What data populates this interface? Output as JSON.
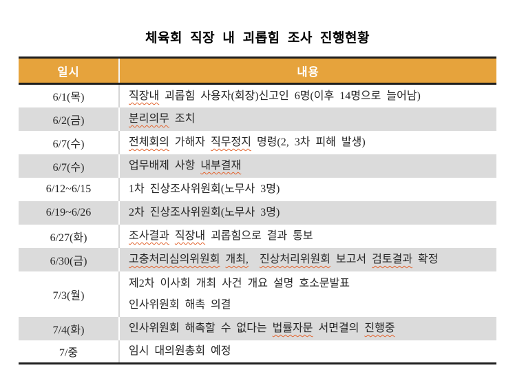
{
  "page": {
    "title": "체육회 직장 내 괴롭힘 조사 진행현황"
  },
  "colors": {
    "header_bg": "#E6A33C",
    "header_text": "#FFFFFF",
    "row_alt_bg": "#DBDBDB",
    "table_border": "#1E1E1E",
    "spellcheck_underline": "#E2622C",
    "body_text": "#262626"
  },
  "table": {
    "columns": [
      {
        "label": "일시"
      },
      {
        "label": "내용"
      }
    ],
    "rows": [
      {
        "date": "6/1(목)",
        "shaded": false,
        "lines": [
          [
            {
              "t": "직장내",
              "m": true
            },
            {
              "t": " 괴롭힘 사용자(회장)신고인 6명(이후 14명으로 늘어남)",
              "m": false
            }
          ]
        ]
      },
      {
        "date": "6/2(금)",
        "shaded": true,
        "lines": [
          [
            {
              "t": "분리의무",
              "m": true
            },
            {
              "t": " 조치",
              "m": false
            }
          ]
        ]
      },
      {
        "date": "6/7(수)",
        "shaded": false,
        "lines": [
          [
            {
              "t": "전체회의",
              "m": true
            },
            {
              "t": " 가해자 ",
              "m": false
            },
            {
              "t": "직무정지",
              "m": true
            },
            {
              "t": " 명령(2, 3차 피해 발생)",
              "m": false
            }
          ]
        ]
      },
      {
        "date": "6/7(수)",
        "shaded": true,
        "lines": [
          [
            {
              "t": "업무배제 사항 ",
              "m": false
            },
            {
              "t": "내부결재",
              "m": true
            }
          ]
        ]
      },
      {
        "date": "6/12~6/15",
        "shaded": false,
        "lines": [
          [
            {
              "t": "1차 진상조사위원회(노무사 3명)",
              "m": false
            }
          ]
        ]
      },
      {
        "date": "6/19~6/26",
        "shaded": true,
        "lines": [
          [
            {
              "t": "2차 진상조사위원회(노무사 3명)",
              "m": false
            }
          ]
        ]
      },
      {
        "date": "6/27(화)",
        "shaded": false,
        "lines": [
          [
            {
              "t": "조사결과",
              "m": true
            },
            {
              "t": " ",
              "m": false
            },
            {
              "t": "직장내",
              "m": true
            },
            {
              "t": " 괴롭힘으로 결과 통보",
              "m": false
            }
          ]
        ]
      },
      {
        "date": "6/30(금)",
        "shaded": true,
        "lines": [
          [
            {
              "t": "고충처리심의위원회",
              "m": true
            },
            {
              "t": " ",
              "m": false
            },
            {
              "t": "개최,",
              "m": true
            },
            {
              "t": "  ",
              "m": false
            },
            {
              "t": "진상처리위원회",
              "m": true
            },
            {
              "t": " 보고서 ",
              "m": false
            },
            {
              "t": "검토결과",
              "m": true
            },
            {
              "t": " 확정",
              "m": false
            }
          ]
        ]
      },
      {
        "date": "7/3(월)",
        "shaded": false,
        "tall": true,
        "lines": [
          [
            {
              "t": "제2차 이사회 개최 사건 개요 설명 호소문발표",
              "m": false
            }
          ],
          [
            {
              "t": "인사위원회 해촉 의결",
              "m": false
            }
          ]
        ]
      },
      {
        "date": "7/4(화)",
        "shaded": true,
        "lines": [
          [
            {
              "t": "인사위원회 해촉할 수 없다는 ",
              "m": false
            },
            {
              "t": "법률자문",
              "m": true
            },
            {
              "t": " 서면결의 ",
              "m": false
            },
            {
              "t": "진행중",
              "m": true
            }
          ]
        ]
      },
      {
        "date": "7/중",
        "shaded": false,
        "lines": [
          [
            {
              "t": "임시 대의원총회 예정",
              "m": false
            }
          ]
        ]
      }
    ]
  }
}
